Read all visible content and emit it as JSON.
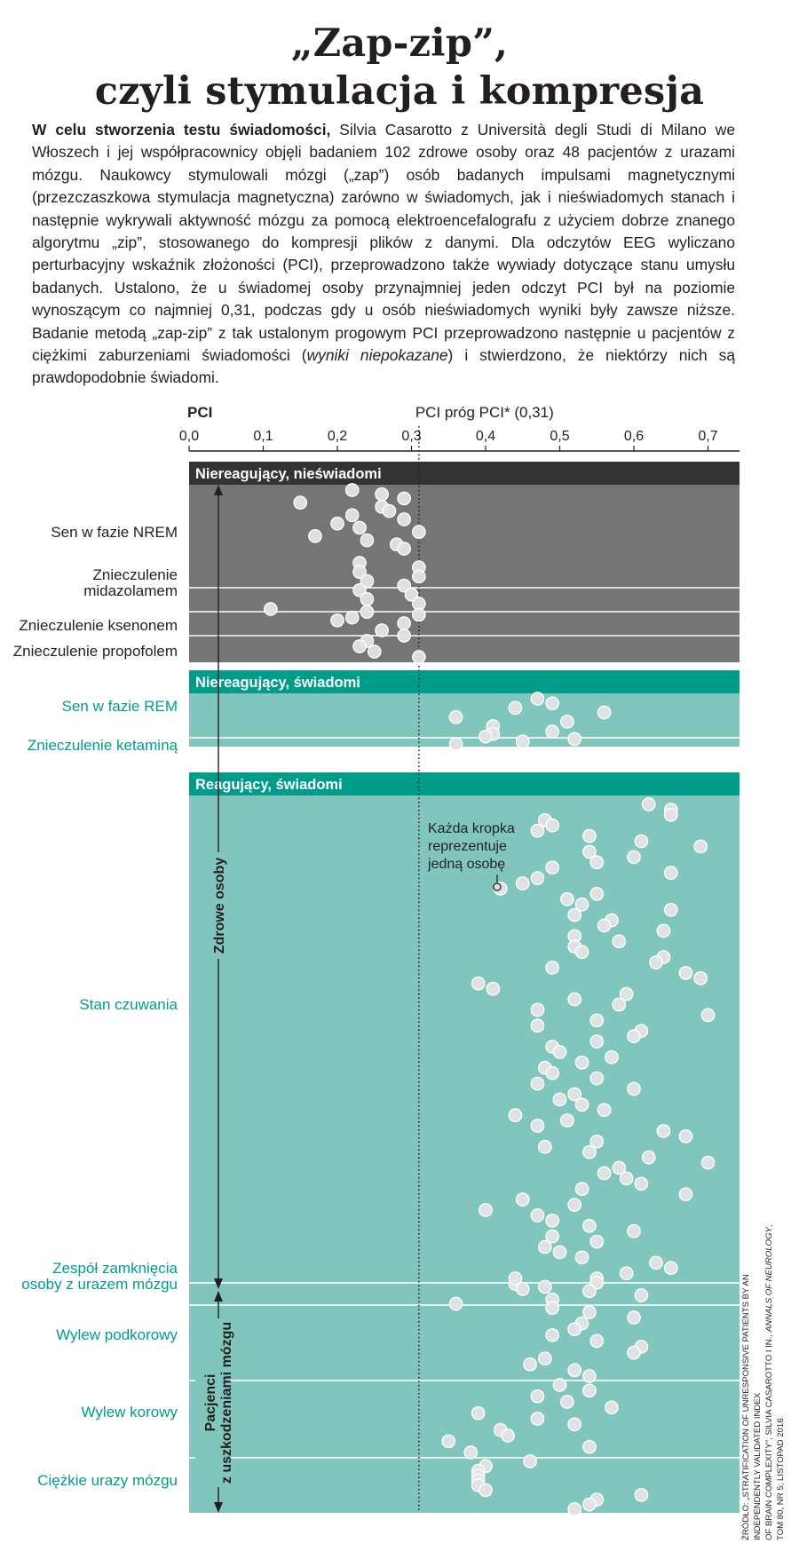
{
  "title": {
    "line1": "„Zap-zip”,",
    "line2": "czyli stymulacja i kompresja"
  },
  "intro": {
    "lead": "W celu stworzenia testu świadomości,",
    "body": " Silvia Casarotto z Università degli Studi di Milano we Włoszech i jej współpracownicy objęli badaniem 102 zdrowe osoby oraz 48 pacjentów z urazami mózgu. Naukowcy stymulowali mózgi („zap”) osób badanych impulsami magnetycznymi (przezczaszkowa stymulacja magnetyczna) zarówno w świadomych, jak i nieświadomych stanach i następnie wykrywali aktywność mózgu za pomocą elektroencefalografu z użyciem dobrze znanego algorytmu „zip”, stosowanego do kompresji plików z danymi. Dla odczytów EEG wyliczano perturbacyjny wskaźnik złożoności (PCI), przeprowadzono także wywiady dotyczące stanu umysłu badanych. Ustalono, że u świadomej osoby przynajmniej jeden odczyt PCI był na poziomie wynoszącym co najmniej 0,31, podczas gdy u osób nieświadomych wyniki były zawsze niższe. Badanie metodą „zap-zip” z tak ustalonym progowym PCI przeprowadzono następnie u pacjentów z ciężkimi zaburzeniami świadomości (",
    "italic": "wyniki niepokazane",
    "tail": ") i stwierdzono, że niektórzy nich są prawdopodobnie świadomi."
  },
  "source": {
    "line1": "Źródło: „Stratification of unresponsive patients by an independently validated index",
    "line2": "of brain complexity”, Silvia Casarotto i in., ",
    "journal": "Annals of Neurology",
    "line2_tail": ", tom 80, nr 5; listopad 2016"
  },
  "colors": {
    "dark_header": "#333333",
    "dark_panel": "#757575",
    "teal_header": "#009c8a",
    "teal_panel": "#80c6bd",
    "teal_text": "#009c8a",
    "dot": "#e4e4e4"
  },
  "chart_data": {
    "type": "scatter",
    "xlabel": "PCI",
    "xlim": [
      0,
      0.75
    ],
    "x_ticks": [
      {
        "value": 0.0,
        "label": "0,0"
      },
      {
        "value": 0.1,
        "label": "0,1"
      },
      {
        "value": 0.2,
        "label": "0,2"
      },
      {
        "value": 0.3,
        "label": "0,3"
      },
      {
        "value": 0.4,
        "label": "0,4"
      },
      {
        "value": 0.5,
        "label": "0,5"
      },
      {
        "value": 0.6,
        "label": "0,6"
      },
      {
        "value": 0.7,
        "label": "0,7"
      }
    ],
    "threshold": {
      "value": 0.31,
      "label": "PCI próg PCI* (0,31)"
    },
    "annotation": "Każda kropka reprezentuje jedną osobę",
    "bracket_labels": {
      "healthy": "Zdrowe osoby",
      "patients": "Pacjenci z uszkodzeniami mózgu"
    },
    "groups": [
      {
        "name": "Niereagujący, nieświadomi",
        "style": "dark",
        "conditions": [
          {
            "label": "Sen w fazie NREM",
            "values": [
              0.22,
              0.26,
              0.29,
              0.15,
              0.26,
              0.27,
              0.22,
              0.29,
              0.2,
              0.23,
              0.31,
              0.17,
              0.24,
              0.28,
              0.29
            ]
          },
          {
            "label": "Znieczulenie midazolamem",
            "values": [
              0.23,
              0.31,
              0.23,
              0.31,
              0.24,
              0.29,
              0.23,
              0.3,
              0.24,
              0.31
            ]
          },
          {
            "label": "Znieczulenie ksenonem",
            "values": [
              0.11,
              0.24,
              0.31,
              0.22,
              0.2,
              0.29
            ]
          },
          {
            "label": "Znieczulenie propofolem",
            "values": [
              0.26,
              0.29,
              0.24,
              0.23,
              0.25,
              0.31
            ]
          }
        ]
      },
      {
        "name": "Niereagujący, świadomi",
        "style": "teal",
        "conditions": [
          {
            "label": "Sen w fazie REM",
            "values": [
              0.47,
              0.49,
              0.44,
              0.56,
              0.36,
              0.51,
              0.41
            ]
          },
          {
            "label": "Znieczulenie ketaminą",
            "values": [
              0.49,
              0.41,
              0.4,
              0.52,
              0.45,
              0.36
            ]
          }
        ]
      },
      {
        "name": "Reagujący, świadomi",
        "style": "teal",
        "conditions": [
          {
            "label": "Stan czuwania",
            "values": [
              0.62,
              0.65,
              0.65,
              0.48,
              0.49,
              0.47,
              0.54,
              0.61,
              0.69,
              0.54,
              0.6,
              0.55,
              0.49,
              0.65,
              0.47,
              0.45,
              0.42,
              0.55,
              0.51,
              0.53,
              0.65,
              0.52,
              0.57,
              0.56,
              0.64,
              0.52,
              0.58,
              0.52,
              0.53,
              0.64,
              0.63,
              0.49,
              0.67,
              0.69,
              0.39,
              0.41,
              0.59,
              0.52,
              0.58,
              0.47,
              0.7,
              0.55,
              0.47,
              0.61,
              0.6,
              0.55,
              0.49,
              0.5,
              0.57,
              0.53,
              0.48,
              0.49,
              0.55,
              0.47,
              0.6,
              0.52,
              0.5,
              0.53,
              0.56,
              0.44,
              0.51,
              0.47,
              0.64,
              0.67,
              0.55,
              0.48,
              0.54,
              0.62,
              0.7,
              0.58,
              0.56,
              0.59,
              0.61,
              0.53,
              0.67,
              0.45,
              0.52,
              0.4,
              0.47,
              0.49,
              0.54,
              0.6,
              0.49,
              0.55,
              0.48,
              0.5,
              0.53,
              0.63,
              0.65,
              0.59,
              0.55,
              0.44,
              0.45
            ]
          },
          {
            "label": "Zespół zamknięcia osoby z urazem mózgu",
            "values": [
              0.44,
              0.55,
              0.48,
              0.54,
              0.61,
              0.49,
              0.36,
              0.49,
              0.54
            ]
          },
          {
            "label": "Wylew podkorowy",
            "values": [
              0.6,
              0.53,
              0.52,
              0.49,
              0.55,
              0.61,
              0.6,
              0.48,
              0.46,
              0.52,
              0.54
            ]
          },
          {
            "label": "Wylew korowy",
            "values": [
              0.5,
              0.54,
              0.47,
              0.51,
              0.57,
              0.39,
              0.47,
              0.52,
              0.42,
              0.43,
              0.35,
              0.54,
              0.38
            ]
          },
          {
            "label": "Ciężkie urazy mózgu",
            "values": [
              0.46,
              0.4,
              0.39,
              0.39,
              0.39,
              0.39,
              0.4,
              0.61,
              0.55,
              0.54,
              0.52
            ]
          }
        ]
      }
    ]
  }
}
